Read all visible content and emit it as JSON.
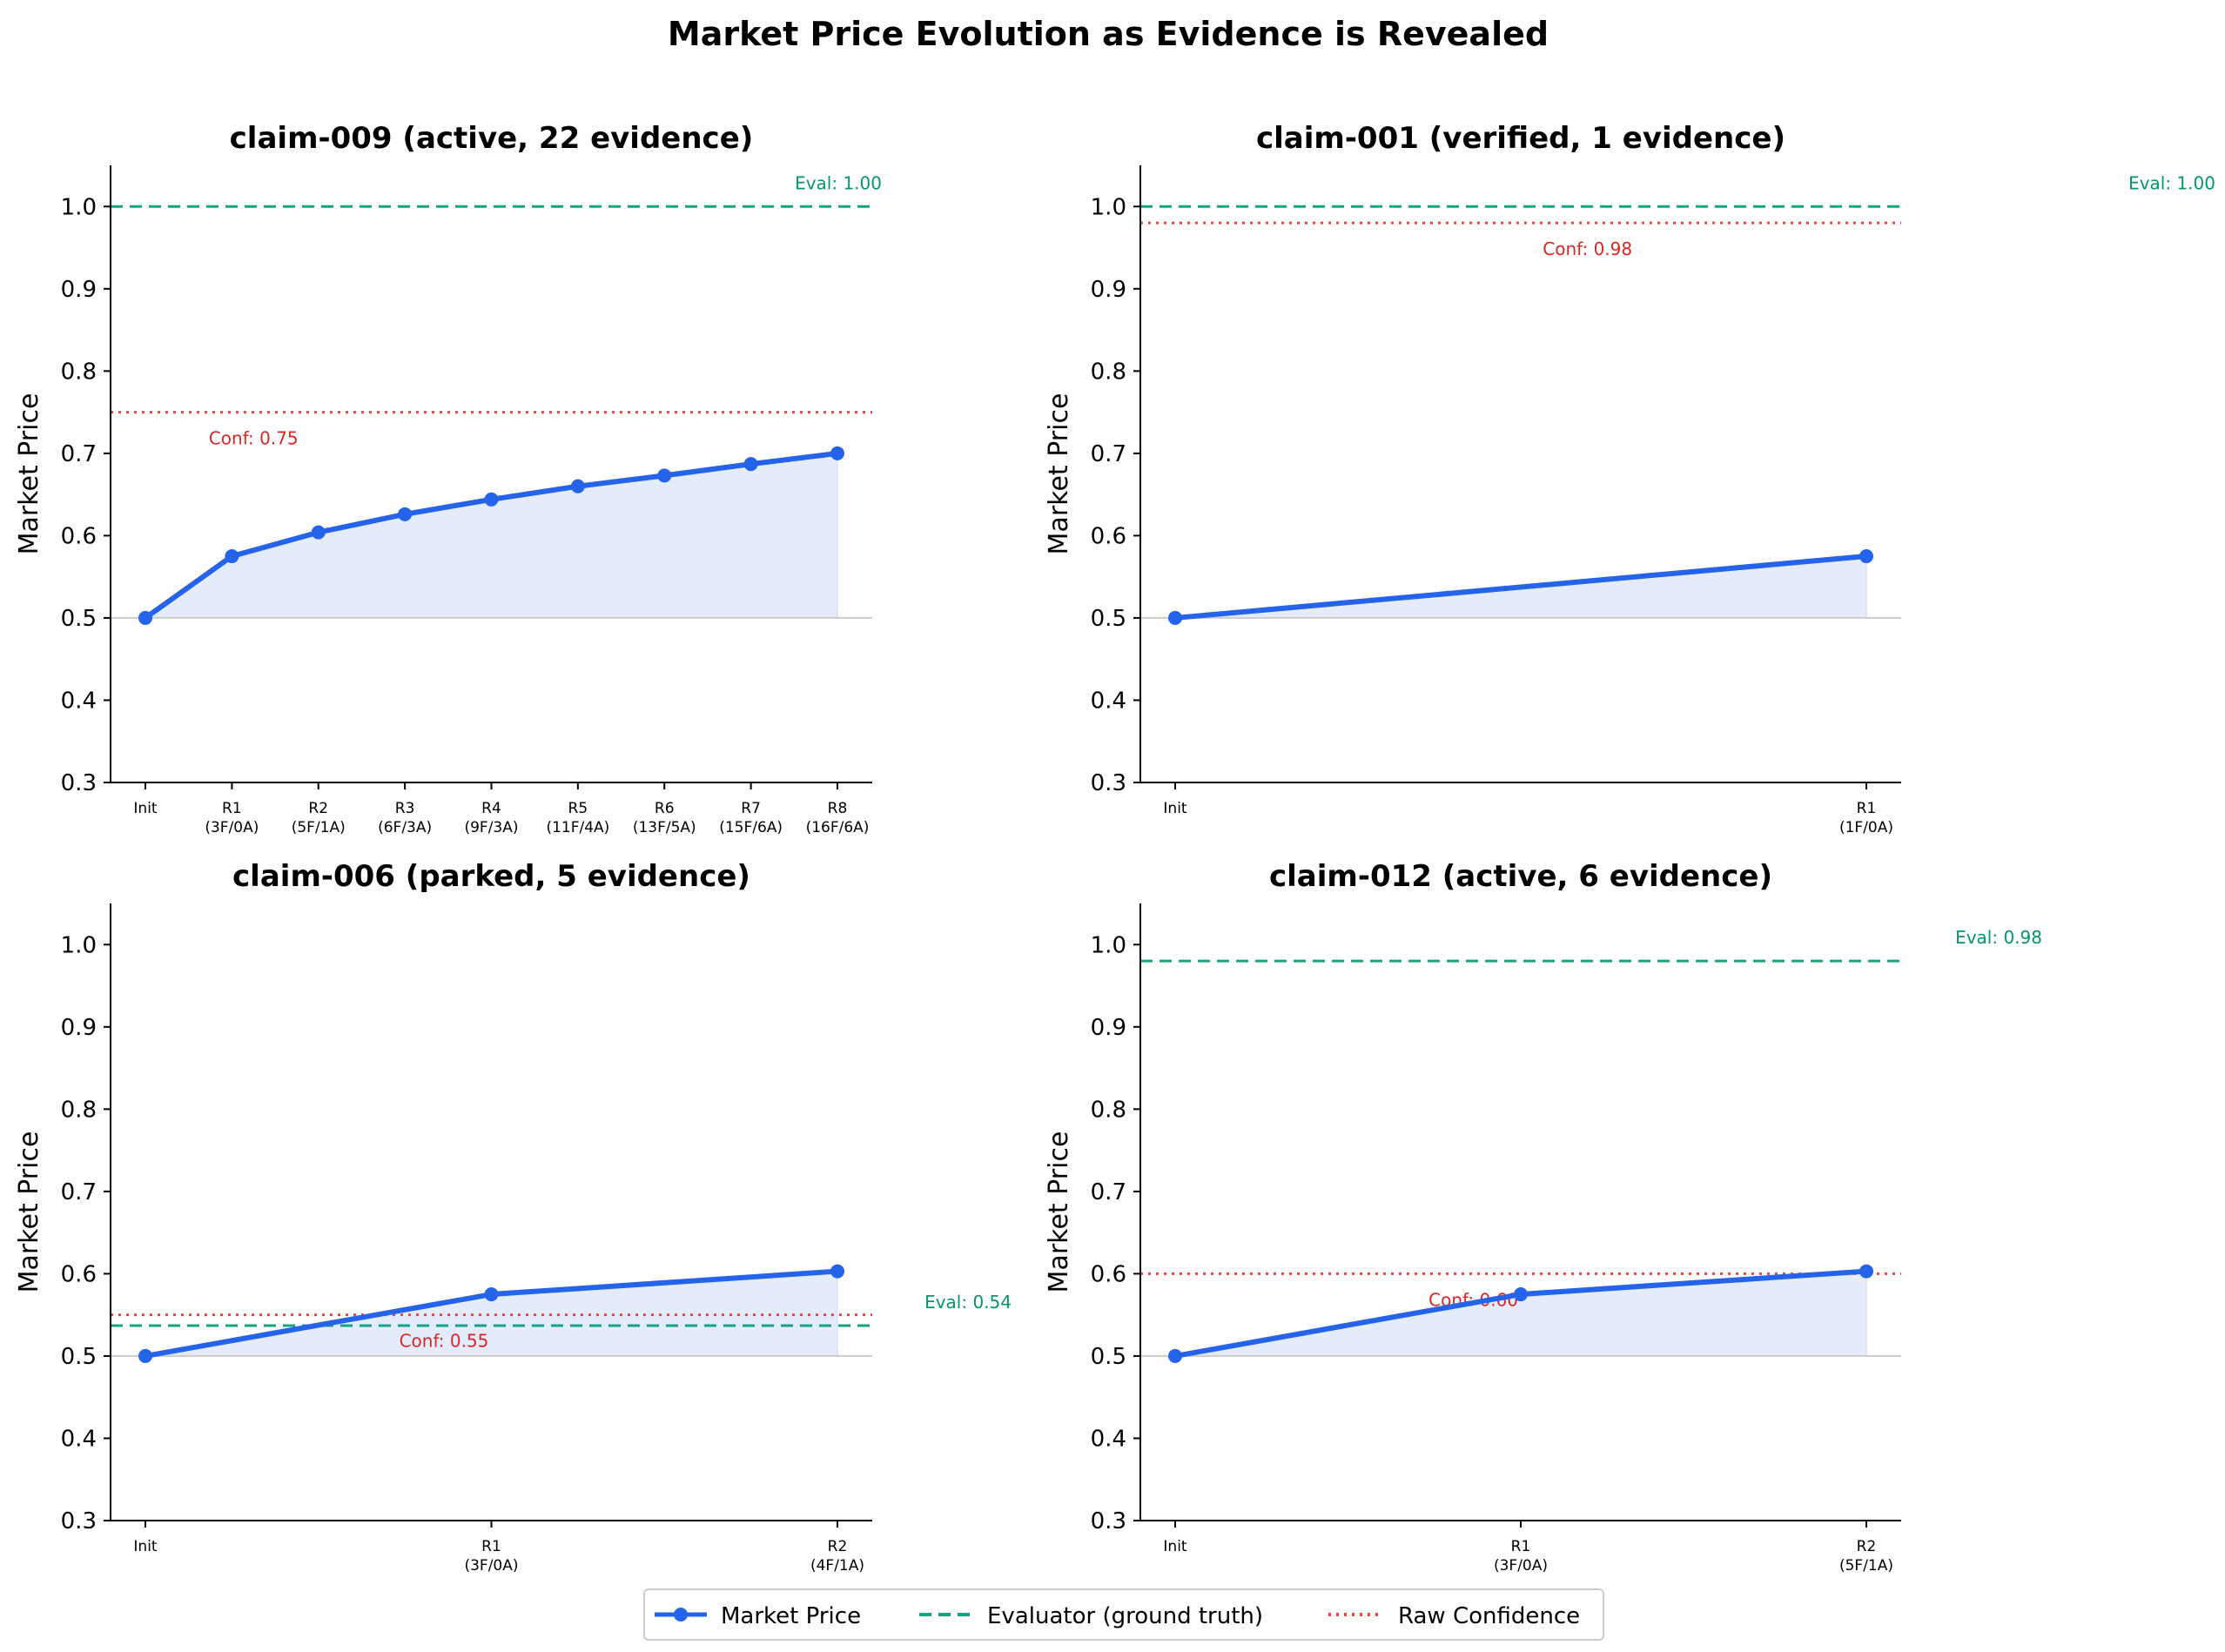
{
  "figure": {
    "suptitle": "Market Price Evolution as Evidence is Revealed"
  },
  "colors": {
    "market": "#2563eb",
    "fill": "#e4ecfb",
    "evaluator": "#16a37f",
    "evaluator_text": "#059669",
    "confidence": "#ef4444",
    "confidence_text": "#dc2626",
    "baseline": "#cccccc",
    "axis": "#000000"
  },
  "legend": {
    "placement": "bottom-center",
    "items": [
      {
        "label": "Market Price",
        "style": "line-marker"
      },
      {
        "label": "Evaluator (ground truth)",
        "style": "dashed"
      },
      {
        "label": "Raw Confidence",
        "style": "dotted"
      }
    ]
  },
  "chart_data": [
    {
      "type": "line",
      "title": "claim-009 (active, 22 evidence)",
      "ylabel": "Market Price",
      "ylim": [
        0.3,
        1.05
      ],
      "yticks": [
        "0.3",
        "0.4",
        "0.5",
        "0.6",
        "0.7",
        "0.8",
        "0.9",
        "1.0"
      ],
      "categories": [
        [
          "Init"
        ],
        [
          "R1",
          "(3F/0A)"
        ],
        [
          "R2",
          "(5F/1A)"
        ],
        [
          "R3",
          "(6F/3A)"
        ],
        [
          "R4",
          "(9F/3A)"
        ],
        [
          "R5",
          "(11F/4A)"
        ],
        [
          "R6",
          "(13F/5A)"
        ],
        [
          "R7",
          "(15F/6A)"
        ],
        [
          "R8",
          "(16F/6A)"
        ]
      ],
      "values": [
        0.5,
        0.575,
        0.604,
        0.626,
        0.644,
        0.66,
        0.673,
        0.687,
        0.7
      ],
      "evaluator": 1.0,
      "evaluator_label": "Eval: 1.00",
      "confidence": 0.75,
      "confidence_label": "Conf: 0.75",
      "baseline": 0.5,
      "grid": false
    },
    {
      "type": "line",
      "title": "claim-001 (verified, 1 evidence)",
      "ylabel": "Market Price",
      "ylim": [
        0.3,
        1.05
      ],
      "yticks": [
        "0.3",
        "0.4",
        "0.5",
        "0.6",
        "0.7",
        "0.8",
        "0.9",
        "1.0"
      ],
      "categories": [
        [
          "Init"
        ],
        [
          "R1",
          "(1F/0A)"
        ]
      ],
      "values": [
        0.5,
        0.575
      ],
      "evaluator": 1.0,
      "evaluator_label": "Eval: 1.00",
      "confidence": 0.98,
      "confidence_label": "Conf: 0.98",
      "baseline": 0.5,
      "grid": false
    },
    {
      "type": "line",
      "title": "claim-006 (parked, 5 evidence)",
      "ylabel": "Market Price",
      "ylim": [
        0.3,
        1.05
      ],
      "yticks": [
        "0.3",
        "0.4",
        "0.5",
        "0.6",
        "0.7",
        "0.8",
        "0.9",
        "1.0"
      ],
      "categories": [
        [
          "Init"
        ],
        [
          "R1",
          "(3F/0A)"
        ],
        [
          "R2",
          "(4F/1A)"
        ]
      ],
      "values": [
        0.5,
        0.575,
        0.603
      ],
      "evaluator": 0.537,
      "evaluator_label": "Eval: 0.54",
      "confidence": 0.55,
      "confidence_label": "Conf: 0.55",
      "baseline": 0.5,
      "grid": false
    },
    {
      "type": "line",
      "title": "claim-012 (active, 6 evidence)",
      "ylabel": "Market Price",
      "ylim": [
        0.3,
        1.05
      ],
      "yticks": [
        "0.3",
        "0.4",
        "0.5",
        "0.6",
        "0.7",
        "0.8",
        "0.9",
        "1.0"
      ],
      "categories": [
        [
          "Init"
        ],
        [
          "R1",
          "(3F/0A)"
        ],
        [
          "R2",
          "(5F/1A)"
        ]
      ],
      "values": [
        0.5,
        0.575,
        0.603
      ],
      "evaluator": 0.98,
      "evaluator_label": "Eval: 0.98",
      "confidence": 0.6,
      "confidence_label": "Conf: 0.60",
      "baseline": 0.5,
      "grid": false
    }
  ]
}
